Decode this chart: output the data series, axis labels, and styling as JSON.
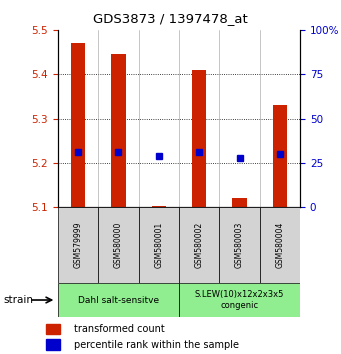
{
  "title": "GDS3873 / 1397478_at",
  "samples": [
    "GSM579999",
    "GSM580000",
    "GSM580001",
    "GSM580002",
    "GSM580003",
    "GSM580004"
  ],
  "transformed_counts": [
    5.47,
    5.445,
    5.103,
    5.41,
    5.12,
    5.33
  ],
  "bar_bottoms": [
    5.1,
    5.1,
    5.1,
    5.1,
    5.1,
    5.1
  ],
  "percentile_values": [
    5.225,
    5.225,
    5.215,
    5.225,
    5.21,
    5.22
  ],
  "ylim": [
    5.1,
    5.5
  ],
  "yticks_left": [
    5.1,
    5.2,
    5.3,
    5.4,
    5.5
  ],
  "yticks_right": [
    0,
    25,
    50,
    75,
    100
  ],
  "group1_label": "Dahl salt-sensitve",
  "group2_label": "S.LEW(10)x12x2x3x5\ncongenic",
  "group_color": "#90EE90",
  "bar_color": "#CC2200",
  "percentile_color": "#0000CC",
  "tick_color_left": "#CC2200",
  "tick_color_right": "#0000CC",
  "strain_label": "strain",
  "legend_red_label": "transformed count",
  "legend_blue_label": "percentile rank within the sample",
  "sample_box_color": "#d3d3d3",
  "bar_width": 0.35
}
